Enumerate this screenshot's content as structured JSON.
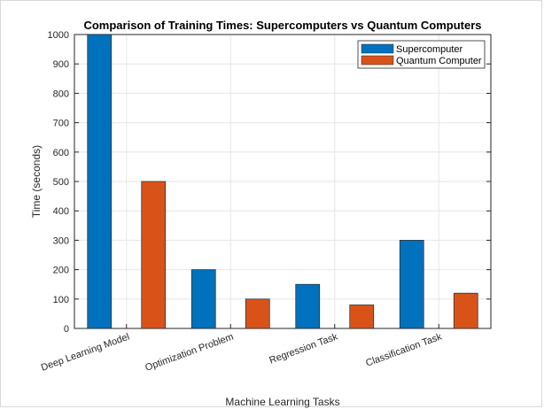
{
  "chart_data": {
    "type": "bar",
    "title": "Comparison of Training Times: Supercomputers vs Quantum Computers",
    "xlabel": "Machine Learning Tasks",
    "ylabel": "Time (seconds)",
    "categories": [
      "Deep Learning Model",
      "Optimization Problem",
      "Regression Task",
      "Classification Task"
    ],
    "series": [
      {
        "name": "Supercomputer",
        "values": [
          1000,
          200,
          150,
          300
        ],
        "color": "#0072BD"
      },
      {
        "name": "Quantum Computer",
        "values": [
          500,
          100,
          80,
          120
        ],
        "color": "#D95319"
      }
    ],
    "ylim": [
      0,
      1000
    ],
    "yticks": [
      0,
      100,
      200,
      300,
      400,
      500,
      600,
      700,
      800,
      900,
      1000
    ],
    "grid": true,
    "legend_position": "top-right"
  }
}
